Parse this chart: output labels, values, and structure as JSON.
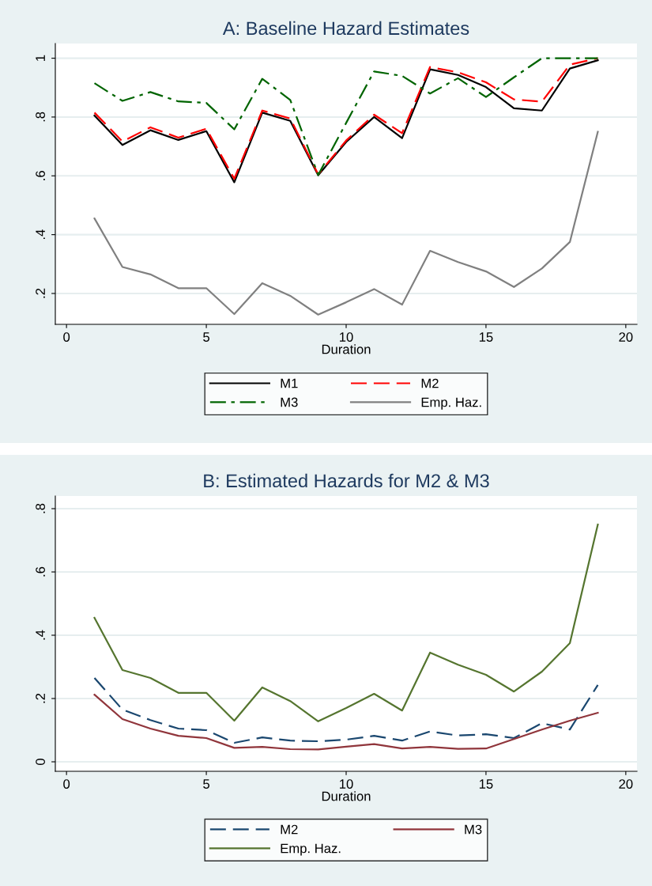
{
  "chart_data": [
    {
      "type": "line",
      "title": "A: Baseline Hazard Estimates",
      "xlabel": "Duration",
      "x": [
        1,
        2,
        3,
        4,
        5,
        6,
        7,
        8,
        9,
        10,
        11,
        12,
        13,
        14,
        15,
        16,
        17,
        18,
        19
      ],
      "series": [
        {
          "name": "M1",
          "color": "#000000",
          "line_style": "solid",
          "values": [
            0.805,
            0.705,
            0.755,
            0.722,
            0.752,
            0.578,
            0.815,
            0.787,
            0.602,
            0.715,
            0.8,
            0.728,
            0.962,
            0.943,
            0.902,
            0.83,
            0.822,
            0.965,
            0.993
          ]
        },
        {
          "name": "M2",
          "color": "#ff0000",
          "line_style": "dashed",
          "values": [
            0.815,
            0.717,
            0.765,
            0.73,
            0.76,
            0.59,
            0.822,
            0.795,
            0.605,
            0.72,
            0.808,
            0.745,
            0.97,
            0.952,
            0.918,
            0.86,
            0.852,
            0.978,
            1.0
          ]
        },
        {
          "name": "M3",
          "color": "#006400",
          "line_style": "dashdot",
          "values": [
            0.915,
            0.855,
            0.885,
            0.853,
            0.848,
            0.758,
            0.93,
            0.858,
            0.603,
            0.78,
            0.955,
            0.94,
            0.88,
            0.932,
            0.868,
            0.935,
            1.0,
            1.0,
            1.0
          ]
        },
        {
          "name": "Emp. Haz.",
          "color": "#808080",
          "line_style": "solid",
          "values": [
            0.455,
            0.29,
            0.265,
            0.218,
            0.218,
            0.13,
            0.235,
            0.192,
            0.128,
            0.17,
            0.215,
            0.162,
            0.345,
            0.307,
            0.275,
            0.222,
            0.285,
            0.375,
            0.75
          ]
        }
      ],
      "xlim": [
        -0.4,
        20.4
      ],
      "xticks": [
        0,
        5,
        10,
        15,
        20
      ],
      "ylim": [
        0.095,
        1.05
      ],
      "yticks": [
        {
          "value": 0.2,
          "label": ".2"
        },
        {
          "value": 0.4,
          "label": ".4"
        },
        {
          "value": 0.6,
          "label": ".6"
        },
        {
          "value": 0.8,
          "label": ".8"
        },
        1
      ],
      "grid": "y",
      "legend": "bottom",
      "marker": "none"
    },
    {
      "type": "line",
      "title": "B: Estimated Hazards for M2 & M3",
      "xlabel": "Duration",
      "x": [
        1,
        2,
        3,
        4,
        5,
        6,
        7,
        8,
        9,
        10,
        11,
        12,
        13,
        14,
        15,
        16,
        17,
        18,
        19
      ],
      "series": [
        {
          "name": "M2",
          "color": "#1a476f",
          "line_style": "dashed",
          "values": [
            0.265,
            0.165,
            0.132,
            0.105,
            0.1,
            0.06,
            0.077,
            0.067,
            0.065,
            0.07,
            0.082,
            0.067,
            0.096,
            0.083,
            0.087,
            0.075,
            0.122,
            0.102,
            0.243
          ]
        },
        {
          "name": "M3",
          "color": "#90353b",
          "line_style": "solid",
          "values": [
            0.212,
            0.135,
            0.105,
            0.082,
            0.075,
            0.044,
            0.047,
            0.04,
            0.039,
            0.048,
            0.056,
            0.042,
            0.047,
            0.041,
            0.042,
            0.072,
            0.102,
            0.13,
            0.155
          ]
        },
        {
          "name": "Emp. Haz.",
          "color": "#55752f",
          "line_style": "solid",
          "values": [
            0.455,
            0.29,
            0.265,
            0.218,
            0.218,
            0.13,
            0.235,
            0.192,
            0.128,
            0.17,
            0.215,
            0.162,
            0.345,
            0.307,
            0.275,
            0.222,
            0.285,
            0.375,
            0.75
          ]
        }
      ],
      "xlim": [
        -0.4,
        20.4
      ],
      "xticks": [
        0,
        5,
        10,
        15,
        20
      ],
      "ylim": [
        -0.03,
        0.84
      ],
      "yticks": [
        0,
        {
          "value": 0.2,
          "label": ".2"
        },
        {
          "value": 0.4,
          "label": ".4"
        },
        {
          "value": 0.6,
          "label": ".6"
        },
        {
          "value": 0.8,
          "label": ".8"
        }
      ],
      "grid": "y",
      "legend": "bottom",
      "marker": "none"
    }
  ]
}
